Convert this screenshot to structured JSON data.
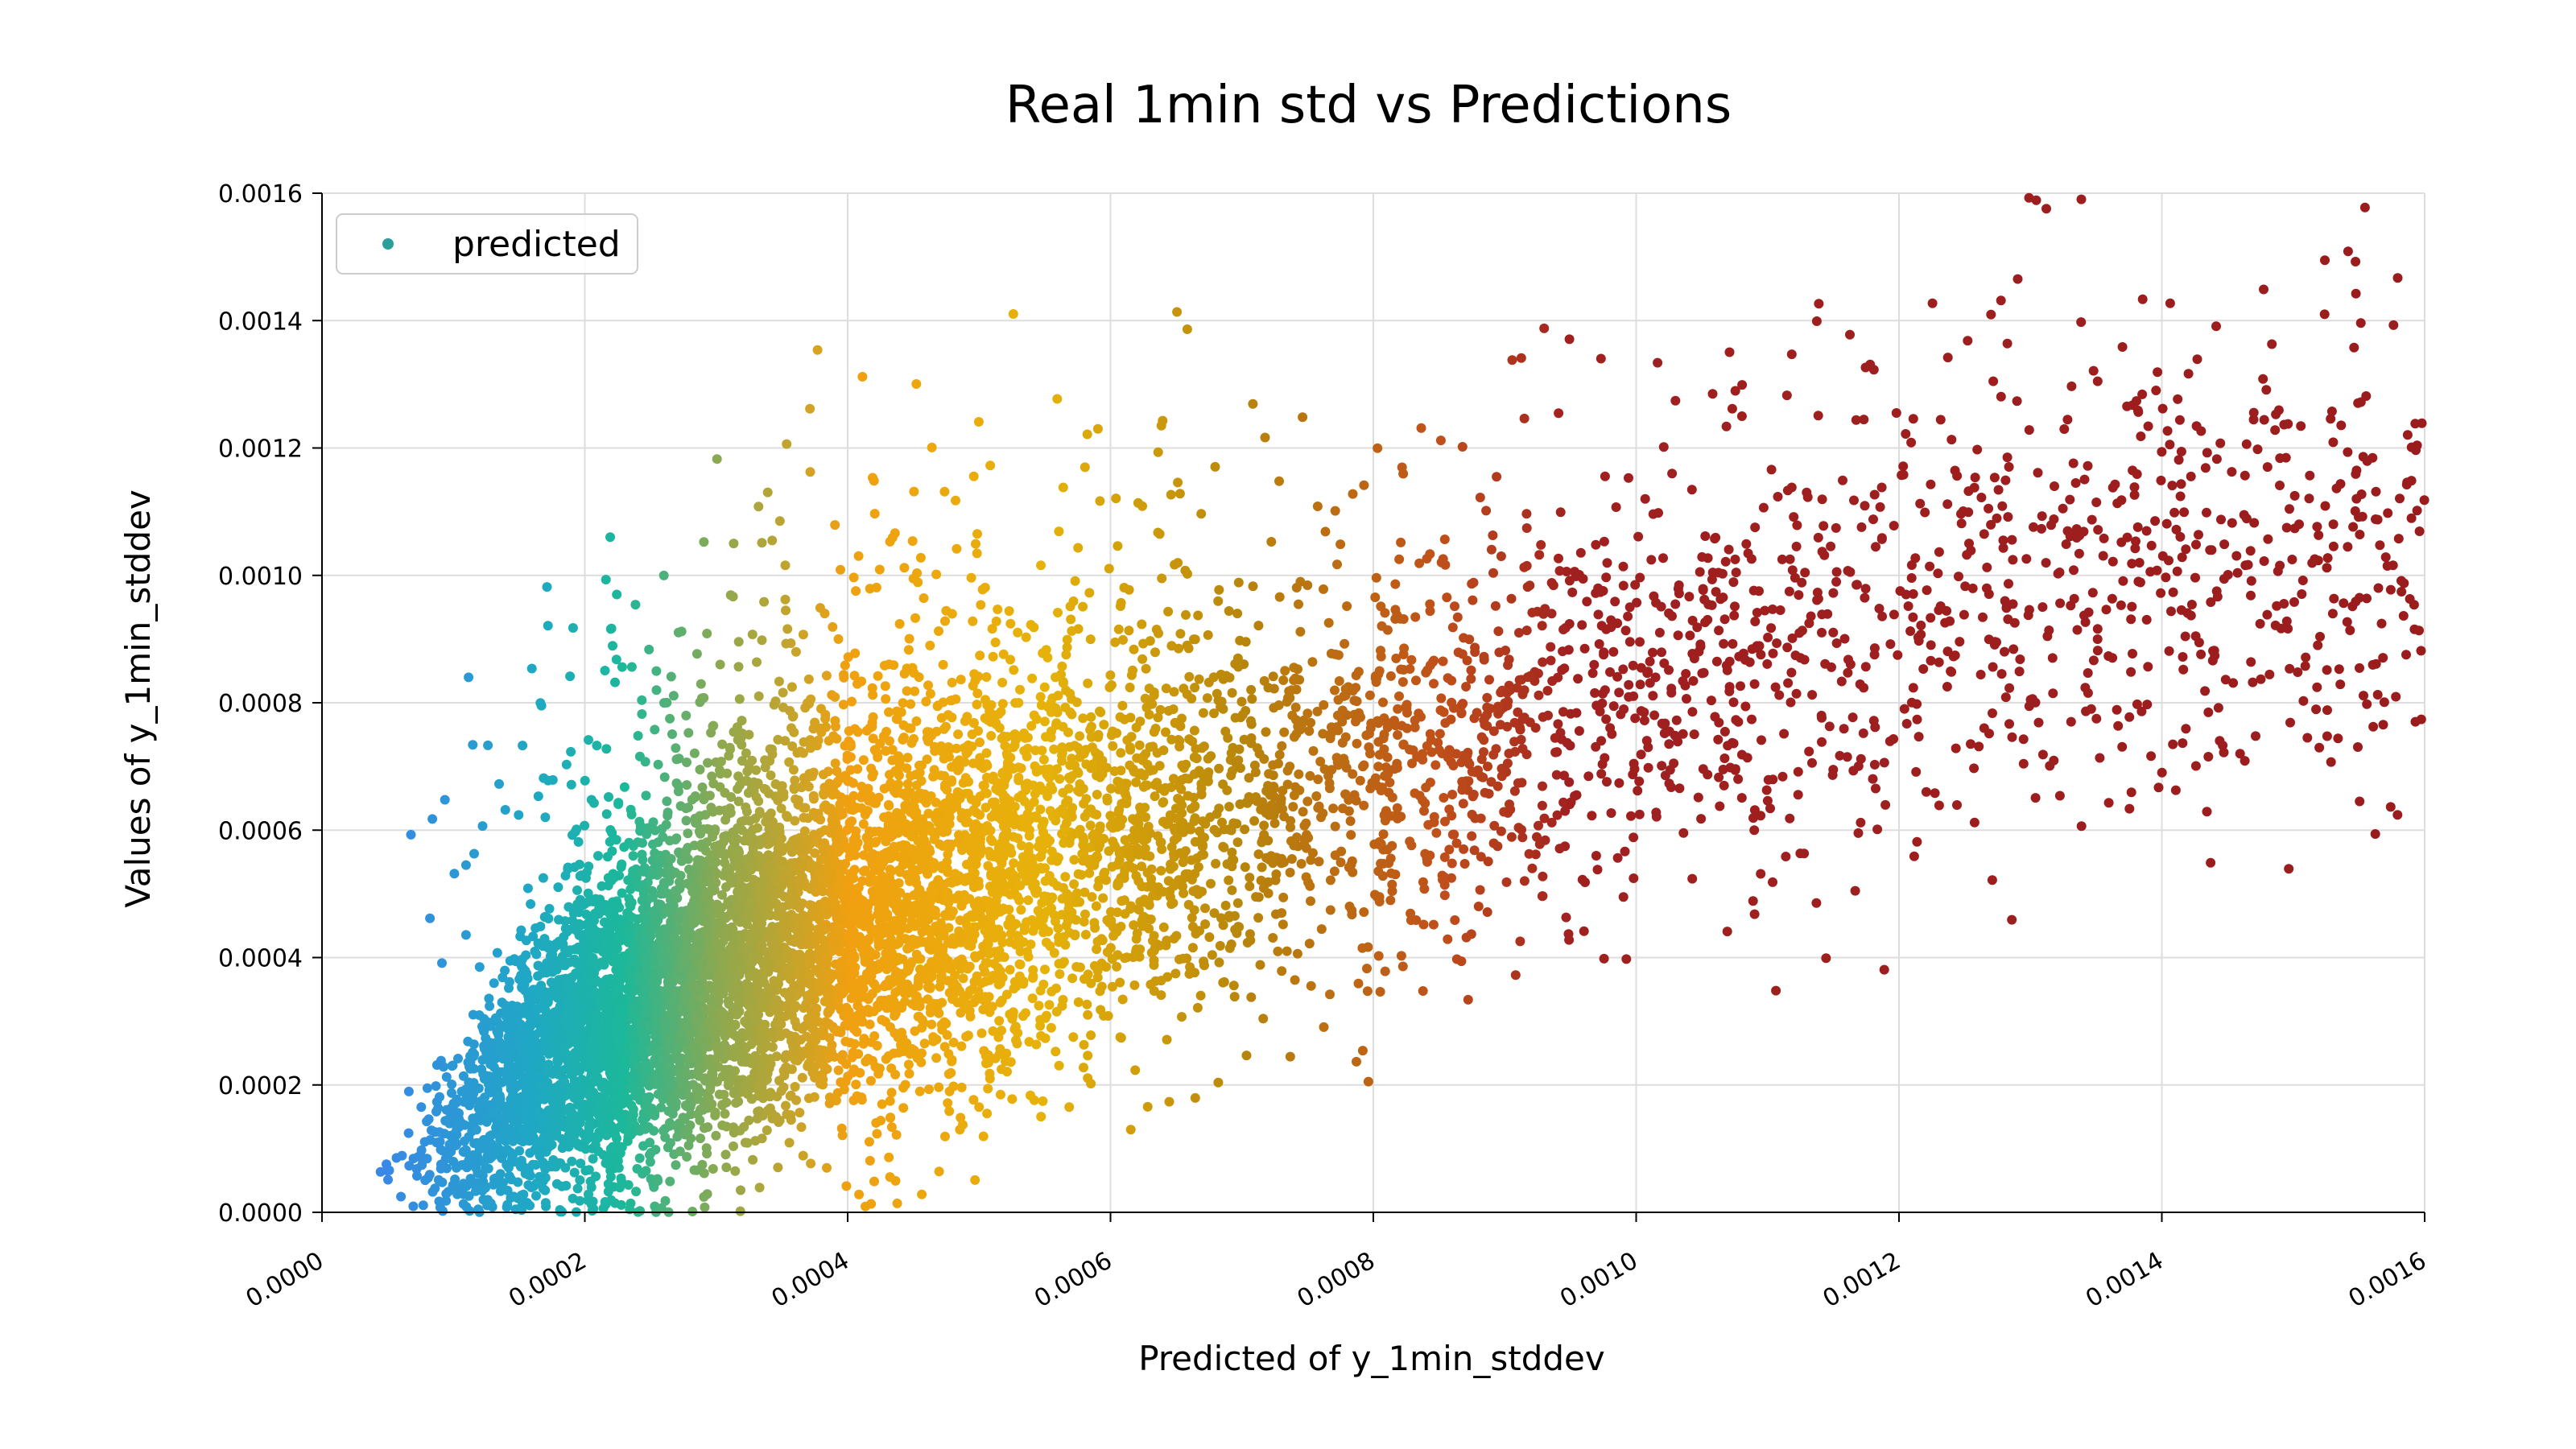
{
  "chart_data": {
    "type": "scatter",
    "title": "Real 1min std vs Predictions",
    "xlabel": "Predicted of y_1min_stddev",
    "ylabel": "Values of y_1min_stddev",
    "xlim": [
      0.0,
      0.0016
    ],
    "ylim": [
      0.0,
      0.0016
    ],
    "x_ticks": [
      "0.0000",
      "0.0002",
      "0.0004",
      "0.0006",
      "0.0008",
      "0.0010",
      "0.0012",
      "0.0014",
      "0.0016"
    ],
    "y_ticks": [
      "0.0000",
      "0.0002",
      "0.0004",
      "0.0006",
      "0.0008",
      "0.0010",
      "0.0012",
      "0.0014",
      "0.0016"
    ],
    "grid": true,
    "legend": {
      "position": "top-left",
      "entries": [
        "predicted"
      ],
      "marker_color": "#2a9d9d"
    },
    "series": [
      {
        "name": "predicted",
        "color_by_x": true,
        "colormap": [
          {
            "x": 4e-05,
            "color": "#3a86e8"
          },
          {
            "x": 0.00016,
            "color": "#1fa8c4"
          },
          {
            "x": 0.00023,
            "color": "#1cb89a"
          },
          {
            "x": 0.0003,
            "color": "#8aa952"
          },
          {
            "x": 0.0004,
            "color": "#f0a010"
          },
          {
            "x": 0.00055,
            "color": "#e6b20a"
          },
          {
            "x": 0.0007,
            "color": "#b8860b"
          },
          {
            "x": 0.00085,
            "color": "#c0501a"
          },
          {
            "x": 0.00095,
            "color": "#a02020"
          },
          {
            "x": 0.0016,
            "color": "#9b1c1c"
          }
        ],
        "density_profile": [
          {
            "x": 5e-05,
            "y_median": 5e-05,
            "y_spread": 6e-05
          },
          {
            "x": 0.0001,
            "y_median": 0.00012,
            "y_spread": 0.00012
          },
          {
            "x": 0.00015,
            "y_median": 0.0002,
            "y_spread": 0.00018
          },
          {
            "x": 0.0002,
            "y_median": 0.00028,
            "y_spread": 0.00022
          },
          {
            "x": 0.0003,
            "y_median": 0.00038,
            "y_spread": 0.00026
          },
          {
            "x": 0.0004,
            "y_median": 0.00046,
            "y_spread": 0.00028
          },
          {
            "x": 0.0005,
            "y_median": 0.00052,
            "y_spread": 0.0003
          },
          {
            "x": 0.0006,
            "y_median": 0.00058,
            "y_spread": 0.0003
          },
          {
            "x": 0.0007,
            "y_median": 0.00064,
            "y_spread": 0.0003
          },
          {
            "x": 0.0008,
            "y_median": 0.0007,
            "y_spread": 0.0003
          },
          {
            "x": 0.0009,
            "y_median": 0.00075,
            "y_spread": 0.0003
          },
          {
            "x": 0.001,
            "y_median": 0.00082,
            "y_spread": 0.0003
          },
          {
            "x": 0.0012,
            "y_median": 0.0009,
            "y_spread": 0.00032
          },
          {
            "x": 0.0014,
            "y_median": 0.001,
            "y_spread": 0.00035
          },
          {
            "x": 0.0016,
            "y_median": 0.00105,
            "y_spread": 0.00035
          }
        ]
      }
    ]
  }
}
